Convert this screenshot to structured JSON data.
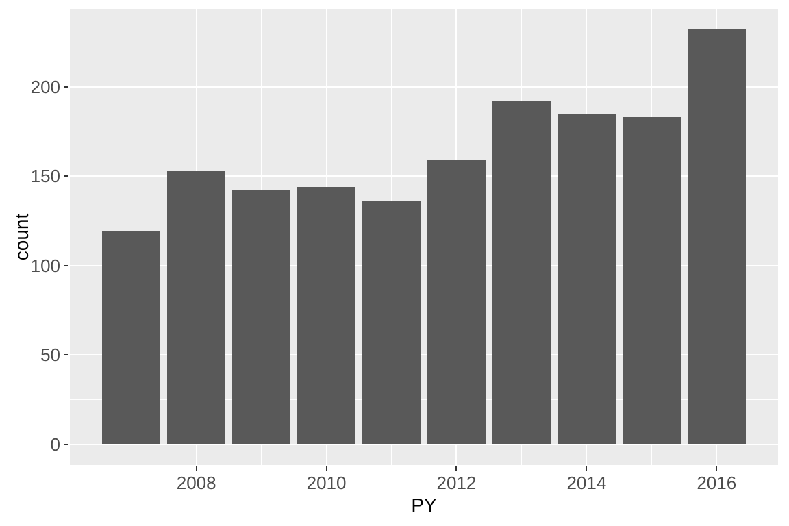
{
  "figure": {
    "background": "#FFFFFF",
    "panel_background": "#EBEBEB",
    "grid_major_color": "#FFFFFF",
    "grid_minor_color": "#FFFFFF",
    "bar_fill": "#595959",
    "tick_mark_color": "#333333",
    "axis_text_color": "#4D4D4D",
    "axis_title_color": "#000000"
  },
  "chart_data": {
    "type": "bar",
    "title": "",
    "xlabel": "PY",
    "ylabel": "count",
    "categories": [
      2007,
      2008,
      2009,
      2010,
      2011,
      2012,
      2013,
      2014,
      2015,
      2016
    ],
    "values": [
      119,
      153,
      142,
      144,
      136,
      159,
      192,
      185,
      183,
      232
    ],
    "bar_width": 0.9,
    "x_ticks": [
      2008,
      2010,
      2012,
      2014,
      2016
    ],
    "x_tick_labels": [
      "2008",
      "2010",
      "2012",
      "2014",
      "2016"
    ],
    "y_ticks": [
      0,
      50,
      100,
      150,
      200
    ],
    "y_tick_labels": [
      "0",
      "50",
      "100",
      "150",
      "200"
    ],
    "xlim": [
      2006.055,
      2016.945
    ],
    "ylim": [
      -11.6,
      243.6
    ],
    "grid": "major+minor",
    "legend": false,
    "style": "ggplot2-grey-theme"
  }
}
